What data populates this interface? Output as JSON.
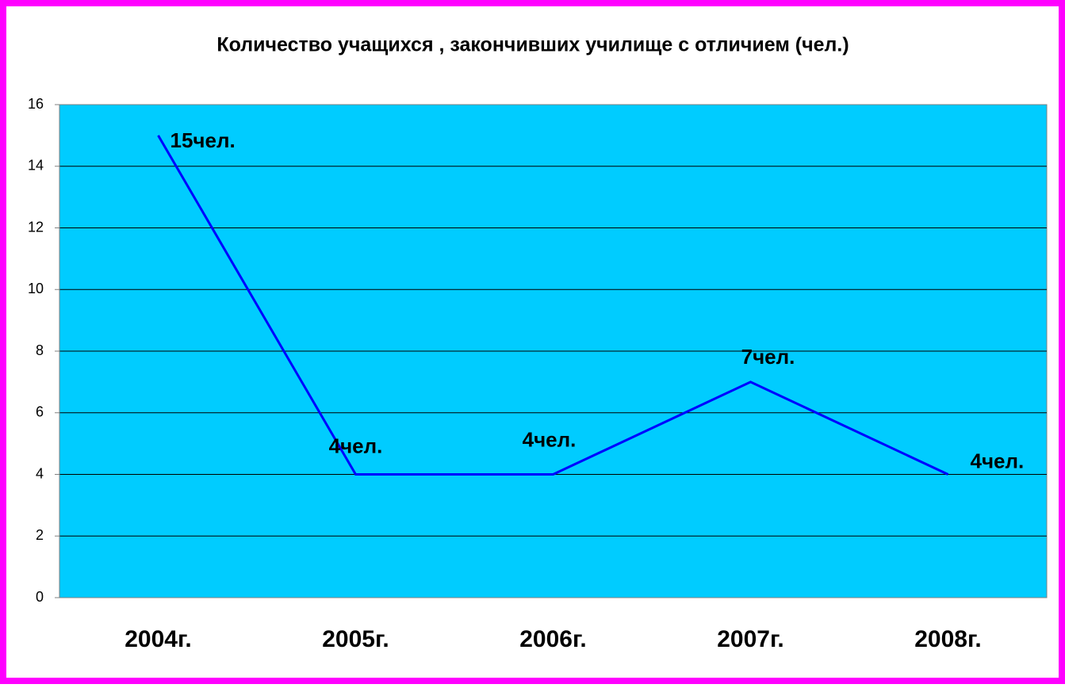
{
  "chart_data": {
    "type": "line",
    "title": "Количество учащихся , закончивших училище с отличием (чел.)",
    "categories": [
      "2004г.",
      "2005г.",
      "2006г.",
      "2007г.",
      "2008г."
    ],
    "series": [
      {
        "name": "Количество учащихся",
        "color": "#0000ff",
        "values": [
          15,
          4,
          4,
          7,
          4
        ],
        "value_labels": [
          "15чел.",
          "4чел.",
          "4чел.",
          "7чел.",
          "4чел."
        ]
      }
    ],
    "ylim": [
      0,
      16
    ],
    "yticks": [
      0,
      2,
      4,
      6,
      8,
      10,
      12,
      14,
      16
    ],
    "grid": true,
    "plot_color": "#00ccff"
  }
}
